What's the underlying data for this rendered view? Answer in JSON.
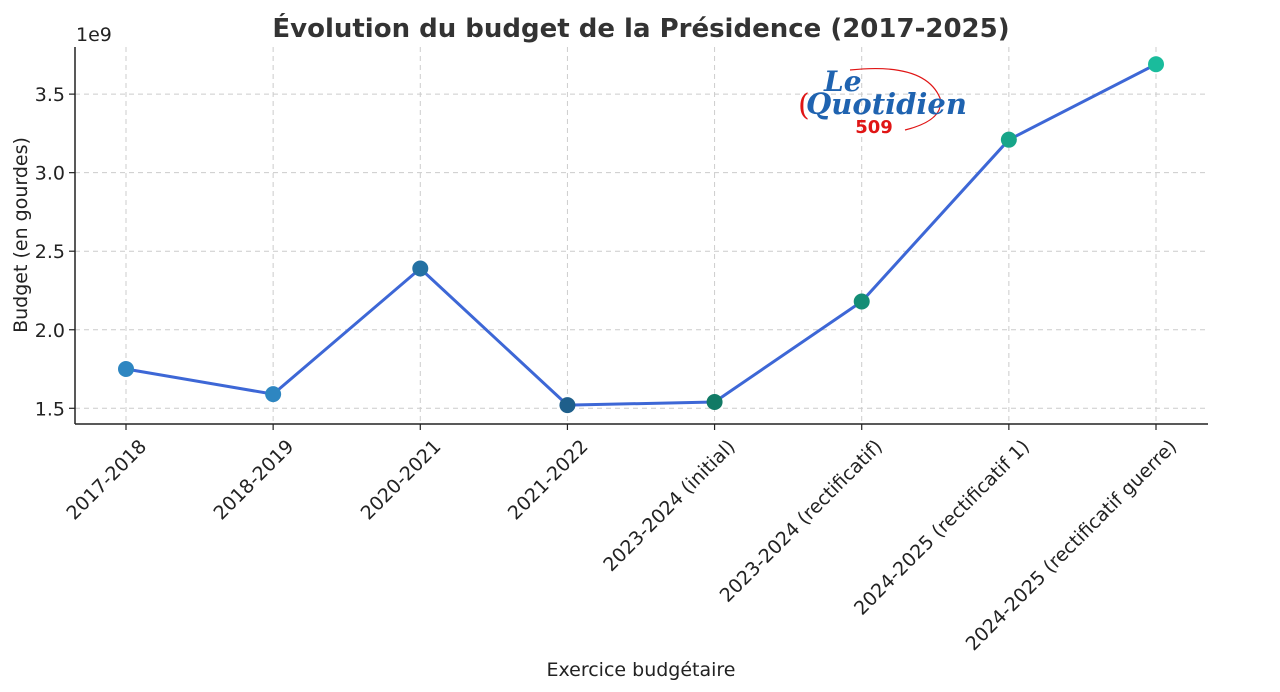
{
  "chart_data": {
    "type": "line",
    "title": "Évolution du budget de la Présidence (2017-2025)",
    "xlabel": "Exercice budgétaire",
    "ylabel": "Budget (en gourdes)",
    "y_offset_label": "1e9",
    "categories": [
      "2017-2018",
      "2018-2019",
      "2020-2021",
      "2021-2022",
      "2023-2024 (initial)",
      "2023-2024 (rectificatif)",
      "2024-2025 (rectificatif 1)",
      "2024-2025 (rectificatif guerre)"
    ],
    "values": [
      1750000000,
      1590000000,
      2390000000,
      1520000000,
      1540000000,
      2180000000,
      3210000000,
      3690000000
    ],
    "point_colors": [
      "#2e86c1",
      "#2e86c1",
      "#2471a3",
      "#1f5f8b",
      "#117a65",
      "#138d75",
      "#17a589",
      "#1abc9c"
    ],
    "line_color": "#3d67d6",
    "ylim": [
      1400000000,
      3800000000
    ],
    "yticks": [
      1500000000,
      2000000000,
      2500000000,
      3000000000,
      3500000000
    ],
    "ytick_labels": [
      "1.5",
      "2.0",
      "2.5",
      "3.0",
      "3.5"
    ],
    "grid": true,
    "watermark": {
      "line1": "Le",
      "line2": "Quotidien",
      "line3": "509",
      "color_blue": "#1f63b0",
      "color_red": "#e01515"
    }
  }
}
